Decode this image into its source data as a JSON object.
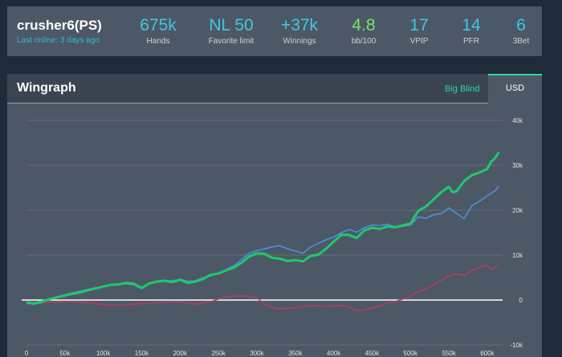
{
  "player": {
    "name": "crusher6(PS)",
    "last_online": "Last online: 3 days ago"
  },
  "stats": [
    {
      "value": "675k",
      "label": "Hands",
      "color": "#3fc8e0"
    },
    {
      "value": "NL 50",
      "label": "Favorite limit",
      "color": "#3fc8e0"
    },
    {
      "value": "+37k",
      "label": "Winnings",
      "color": "#3fc8e0"
    },
    {
      "value": "4.8",
      "label": "bb/100",
      "color": "#7be36a"
    },
    {
      "value": "17",
      "label": "VPIP",
      "color": "#3fc8e0"
    },
    {
      "value": "14",
      "label": "PFR",
      "color": "#3fc8e0"
    },
    {
      "value": "6",
      "label": "3Bet",
      "color": "#3fc8e0"
    }
  ],
  "wingraph": {
    "title": "Wingraph",
    "tabs": {
      "big_blind": "Big Blind",
      "usd": "USD"
    },
    "active_tab": "usd"
  },
  "chart_data": {
    "type": "line",
    "x_ticks": [
      "0",
      "50k",
      "100k",
      "150k",
      "200k",
      "250k",
      "300k",
      "350k",
      "400k",
      "450k",
      "500k",
      "550k",
      "600k"
    ],
    "y_ticks": [
      "40k",
      "30k",
      "20k",
      "10k",
      "0",
      "-10k"
    ],
    "xlim": [
      0,
      620000
    ],
    "ylim": [
      -10000,
      40000
    ],
    "grid": true,
    "series": [
      {
        "color": "#1fc96b",
        "points": [
          [
            0,
            -500
          ],
          [
            10000,
            -800
          ],
          [
            20000,
            -300
          ],
          [
            30000,
            200
          ],
          [
            40000,
            600
          ],
          [
            50000,
            1000
          ],
          [
            60000,
            1400
          ],
          [
            70000,
            1700
          ],
          [
            80000,
            2200
          ],
          [
            90000,
            2600
          ],
          [
            100000,
            3000
          ],
          [
            110000,
            3400
          ],
          [
            120000,
            3500
          ],
          [
            130000,
            3800
          ],
          [
            140000,
            3600
          ],
          [
            150000,
            2700
          ],
          [
            160000,
            3700
          ],
          [
            170000,
            4100
          ],
          [
            180000,
            4300
          ],
          [
            190000,
            4000
          ],
          [
            200000,
            4500
          ],
          [
            210000,
            3800
          ],
          [
            220000,
            4100
          ],
          [
            230000,
            4700
          ],
          [
            240000,
            5600
          ],
          [
            250000,
            5900
          ],
          [
            260000,
            6600
          ],
          [
            270000,
            7200
          ],
          [
            280000,
            8300
          ],
          [
            290000,
            9700
          ],
          [
            300000,
            10400
          ],
          [
            310000,
            10300
          ],
          [
            320000,
            9400
          ],
          [
            330000,
            9200
          ],
          [
            340000,
            8700
          ],
          [
            350000,
            8900
          ],
          [
            360000,
            8600
          ],
          [
            370000,
            9800
          ],
          [
            380000,
            10100
          ],
          [
            390000,
            11400
          ],
          [
            400000,
            13000
          ],
          [
            410000,
            14500
          ],
          [
            420000,
            14500
          ],
          [
            430000,
            13800
          ],
          [
            440000,
            15500
          ],
          [
            450000,
            16100
          ],
          [
            460000,
            15800
          ],
          [
            470000,
            16400
          ],
          [
            480000,
            16200
          ],
          [
            490000,
            16600
          ],
          [
            500000,
            17000
          ],
          [
            510000,
            19800
          ],
          [
            520000,
            20800
          ],
          [
            530000,
            22400
          ],
          [
            540000,
            24000
          ],
          [
            550000,
            25200
          ],
          [
            555000,
            24000
          ],
          [
            560000,
            24200
          ],
          [
            570000,
            26500
          ],
          [
            580000,
            27800
          ],
          [
            590000,
            28400
          ],
          [
            600000,
            29200
          ],
          [
            605000,
            30800
          ],
          [
            610000,
            31500
          ],
          [
            615000,
            32900
          ]
        ]
      },
      {
        "color": "#4a90e2",
        "points": [
          [
            0,
            -800
          ],
          [
            10000,
            -900
          ],
          [
            20000,
            -600
          ],
          [
            30000,
            200
          ],
          [
            40000,
            700
          ],
          [
            50000,
            1200
          ],
          [
            60000,
            1600
          ],
          [
            70000,
            2000
          ],
          [
            80000,
            2400
          ],
          [
            90000,
            2700
          ],
          [
            100000,
            3000
          ],
          [
            110000,
            3300
          ],
          [
            120000,
            3500
          ],
          [
            130000,
            3600
          ],
          [
            140000,
            3400
          ],
          [
            150000,
            2500
          ],
          [
            160000,
            3600
          ],
          [
            170000,
            4000
          ],
          [
            180000,
            4200
          ],
          [
            190000,
            4300
          ],
          [
            200000,
            4600
          ],
          [
            210000,
            4200
          ],
          [
            220000,
            4300
          ],
          [
            230000,
            5000
          ],
          [
            240000,
            5400
          ],
          [
            250000,
            6000
          ],
          [
            260000,
            6800
          ],
          [
            270000,
            7600
          ],
          [
            280000,
            9000
          ],
          [
            290000,
            10400
          ],
          [
            300000,
            11000
          ],
          [
            310000,
            11400
          ],
          [
            320000,
            11800
          ],
          [
            330000,
            12100
          ],
          [
            340000,
            11400
          ],
          [
            350000,
            10900
          ],
          [
            360000,
            10400
          ],
          [
            370000,
            11800
          ],
          [
            380000,
            12600
          ],
          [
            390000,
            13400
          ],
          [
            400000,
            14000
          ],
          [
            410000,
            15000
          ],
          [
            420000,
            15700
          ],
          [
            430000,
            15100
          ],
          [
            440000,
            16100
          ],
          [
            450000,
            16700
          ],
          [
            460000,
            16600
          ],
          [
            470000,
            16900
          ],
          [
            480000,
            16300
          ],
          [
            490000,
            16400
          ],
          [
            500000,
            16700
          ],
          [
            510000,
            18500
          ],
          [
            520000,
            18200
          ],
          [
            530000,
            19000
          ],
          [
            540000,
            19200
          ],
          [
            550000,
            20500
          ],
          [
            560000,
            19300
          ],
          [
            570000,
            18100
          ],
          [
            580000,
            21000
          ],
          [
            590000,
            22000
          ],
          [
            600000,
            23200
          ],
          [
            610000,
            24300
          ],
          [
            615000,
            25300
          ]
        ]
      },
      {
        "color": "#c0395f",
        "points": [
          [
            0,
            -600
          ],
          [
            20000,
            -500
          ],
          [
            40000,
            -400
          ],
          [
            60000,
            -400
          ],
          [
            80000,
            -600
          ],
          [
            100000,
            -1000
          ],
          [
            120000,
            -1100
          ],
          [
            140000,
            -900
          ],
          [
            160000,
            -700
          ],
          [
            180000,
            -500
          ],
          [
            200000,
            -400
          ],
          [
            210000,
            -700
          ],
          [
            220000,
            -900
          ],
          [
            240000,
            -300
          ],
          [
            260000,
            700
          ],
          [
            280000,
            1000
          ],
          [
            300000,
            500
          ],
          [
            310000,
            -900
          ],
          [
            320000,
            -1700
          ],
          [
            330000,
            -2000
          ],
          [
            350000,
            -1700
          ],
          [
            370000,
            -1200
          ],
          [
            390000,
            -1400
          ],
          [
            410000,
            -1200
          ],
          [
            420000,
            -1500
          ],
          [
            430000,
            -2400
          ],
          [
            440000,
            -2200
          ],
          [
            450000,
            -1700
          ],
          [
            460000,
            -1300
          ],
          [
            470000,
            -700
          ],
          [
            480000,
            -300
          ],
          [
            490000,
            200
          ],
          [
            500000,
            900
          ],
          [
            510000,
            1800
          ],
          [
            520000,
            2500
          ],
          [
            530000,
            3400
          ],
          [
            540000,
            4400
          ],
          [
            550000,
            5300
          ],
          [
            560000,
            5800
          ],
          [
            570000,
            5500
          ],
          [
            580000,
            6500
          ],
          [
            590000,
            7300
          ],
          [
            600000,
            7700
          ],
          [
            605000,
            6800
          ],
          [
            610000,
            7300
          ],
          [
            615000,
            7600
          ]
        ]
      }
    ]
  }
}
